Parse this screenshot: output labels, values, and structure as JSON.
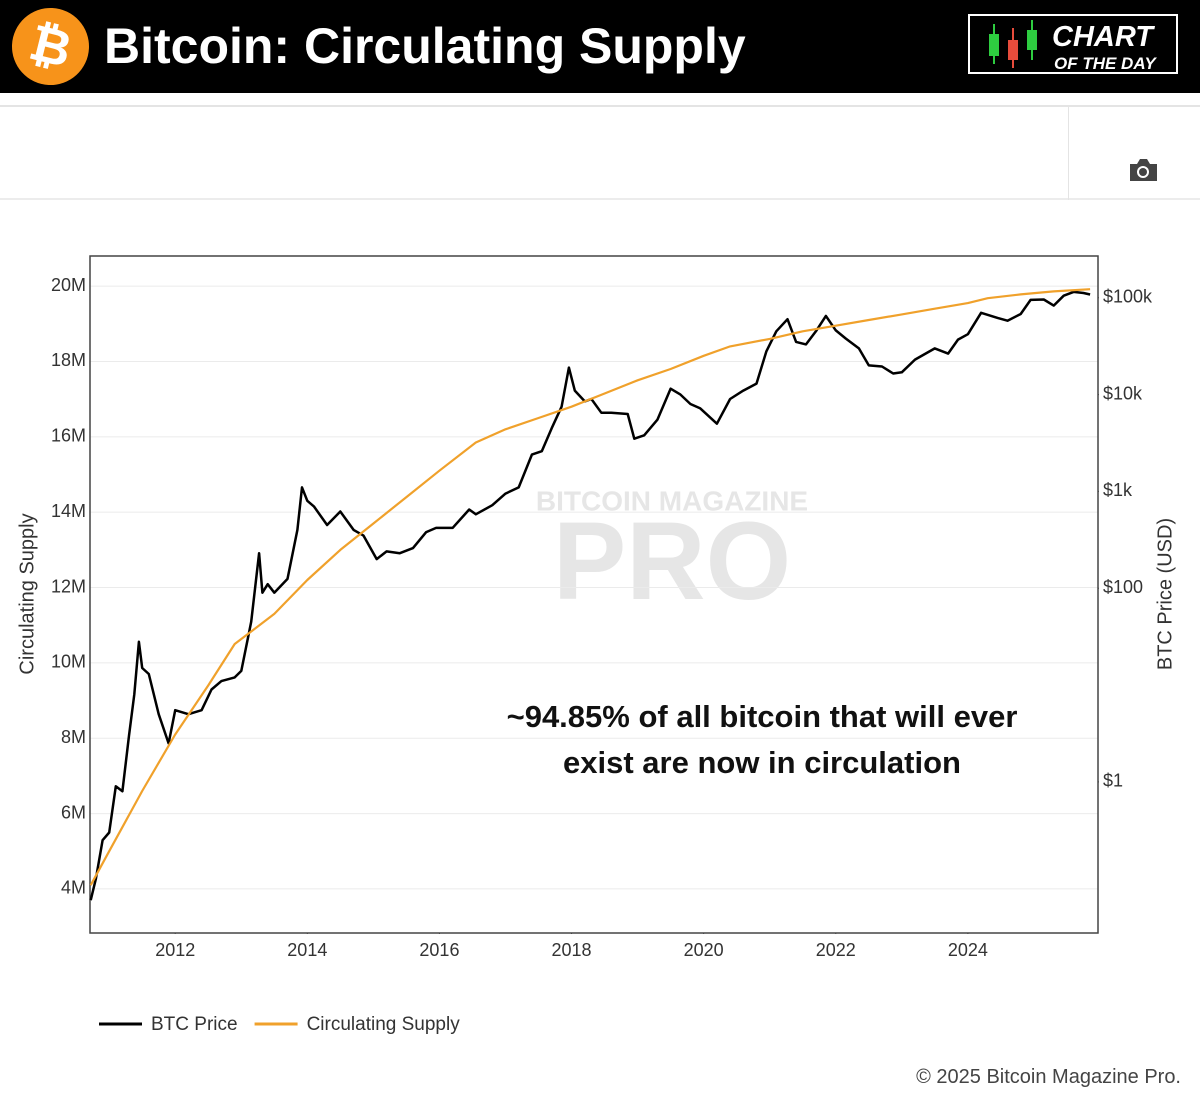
{
  "header": {
    "logo": "₿",
    "title": "Bitcoin: Circulating Supply",
    "badge_line1": "CHART",
    "badge_line2": "OF THE DAY"
  },
  "chart_data": {
    "type": "line",
    "y_label": "Circulating Supply",
    "y2_label": "BTC Price (USD)",
    "annotation": "~94.85% of all bitcoin that will ever exist are now in circulation",
    "watermark_top": "BITCOIN MAGAZINE",
    "watermark_main": "PRO",
    "xlim": [
      2010.71,
      2025.97
    ],
    "xticks": [
      2012,
      2014,
      2016,
      2018,
      2020,
      2022,
      2024
    ],
    "ylim": [
      2830000,
      20800000
    ],
    "yticks": [
      {
        "value": 4000000,
        "label": "4M"
      },
      {
        "value": 6000000,
        "label": "6M"
      },
      {
        "value": 8000000,
        "label": "8M"
      },
      {
        "value": 10000000,
        "label": "10M"
      },
      {
        "value": 12000000,
        "label": "12M"
      },
      {
        "value": 14000000,
        "label": "14M"
      },
      {
        "value": 16000000,
        "label": "16M"
      },
      {
        "value": 18000000,
        "label": "18M"
      },
      {
        "value": 20000000,
        "label": "20M"
      }
    ],
    "y2lim": [
      0.0275,
      270000
    ],
    "y2scale": "log",
    "y2ticks": [
      {
        "value": 1,
        "label": "$1"
      },
      {
        "value": 100,
        "label": "$100"
      },
      {
        "value": 1000,
        "label": "$1k"
      },
      {
        "value": 10000,
        "label": "$10k"
      },
      {
        "value": 100000,
        "label": "$100k"
      }
    ],
    "grid": true,
    "legend": "bottom-left",
    "series": [
      {
        "name": "BTC Price",
        "color": "#000000",
        "axis": "y2",
        "x": [
          2010.72,
          2010.8,
          2010.9,
          2011.0,
          2011.1,
          2011.2,
          2011.3,
          2011.38,
          2011.45,
          2011.5,
          2011.6,
          2011.75,
          2011.9,
          2012.0,
          2012.2,
          2012.4,
          2012.55,
          2012.7,
          2012.9,
          2013.0,
          2013.15,
          2013.27,
          2013.32,
          2013.4,
          2013.5,
          2013.7,
          2013.85,
          2013.92,
          2014.0,
          2014.1,
          2014.3,
          2014.5,
          2014.7,
          2014.85,
          2015.05,
          2015.2,
          2015.4,
          2015.6,
          2015.8,
          2015.95,
          2016.2,
          2016.45,
          2016.55,
          2016.8,
          2017.0,
          2017.2,
          2017.4,
          2017.55,
          2017.7,
          2017.85,
          2017.96,
          2018.05,
          2018.2,
          2018.3,
          2018.45,
          2018.6,
          2018.85,
          2018.95,
          2019.1,
          2019.3,
          2019.5,
          2019.65,
          2019.8,
          2019.95,
          2020.2,
          2020.4,
          2020.6,
          2020.8,
          2020.95,
          2021.1,
          2021.27,
          2021.4,
          2021.55,
          2021.7,
          2021.85,
          2022.0,
          2022.15,
          2022.35,
          2022.5,
          2022.7,
          2022.87,
          2023.0,
          2023.2,
          2023.5,
          2023.7,
          2023.85,
          2024.0,
          2024.2,
          2024.45,
          2024.6,
          2024.8,
          2024.95,
          2025.15,
          2025.3,
          2025.45,
          2025.6,
          2025.75,
          2025.85
        ],
        "values": [
          0.06,
          0.1,
          0.25,
          0.3,
          0.9,
          0.8,
          3,
          8,
          28,
          15,
          13,
          5,
          2.5,
          5.5,
          5,
          5.5,
          9,
          11,
          12,
          14,
          45,
          230,
          90,
          110,
          90,
          125,
          400,
          1100,
          800,
          700,
          450,
          620,
          400,
          350,
          200,
          240,
          230,
          260,
          380,
          420,
          420,
          650,
          580,
          720,
          950,
          1100,
          2400,
          2600,
          4500,
          7500,
          19000,
          11000,
          8500,
          9000,
          6500,
          6500,
          6300,
          3500,
          3800,
          5500,
          11500,
          10000,
          8000,
          7200,
          5000,
          9000,
          11000,
          13000,
          28000,
          45000,
          60000,
          35000,
          33000,
          45000,
          65000,
          46000,
          38000,
          30000,
          20000,
          19500,
          16500,
          17000,
          23000,
          30000,
          26500,
          37000,
          42000,
          70000,
          62000,
          58000,
          68000,
          95000,
          96000,
          83000,
          105000,
          115000,
          112000,
          108000
        ]
      },
      {
        "name": "Circulating Supply",
        "color": "#f0a12b",
        "x": [
          2010.72,
          2011.0,
          2011.5,
          2012.0,
          2012.5,
          2012.9,
          2013.5,
          2014.0,
          2014.5,
          2015.0,
          2015.5,
          2016.0,
          2016.55,
          2017.0,
          2017.5,
          2018.0,
          2018.5,
          2019.0,
          2019.5,
          2020.0,
          2020.4,
          2021.0,
          2021.5,
          2022.0,
          2022.5,
          2023.0,
          2023.5,
          2024.0,
          2024.3,
          2024.8,
          2025.3,
          2025.85
        ],
        "values": [
          4100000,
          5000000,
          6600000,
          8100000,
          9400000,
          10500000,
          11300000,
          12200000,
          13000000,
          13700000,
          14400000,
          15100000,
          15850000,
          16200000,
          16500000,
          16800000,
          17150000,
          17500000,
          17800000,
          18150000,
          18400000,
          18600000,
          18800000,
          18950000,
          19100000,
          19250000,
          19400000,
          19550000,
          19680000,
          19780000,
          19860000,
          19920000
        ]
      }
    ]
  },
  "footer": {
    "copyright": "© 2025 Bitcoin Magazine Pro."
  }
}
